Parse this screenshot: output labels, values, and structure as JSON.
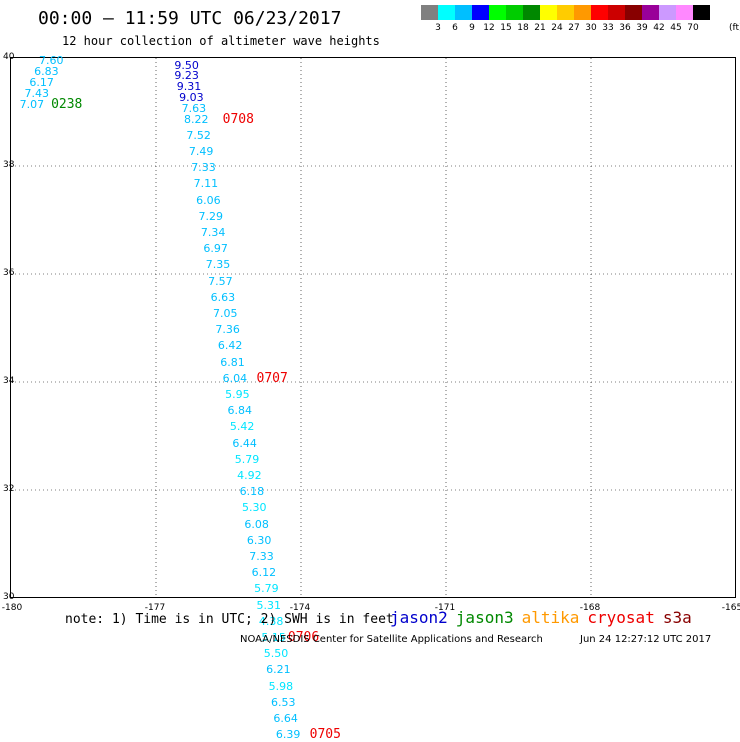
{
  "header": {
    "title": "00:00 – 11:59 UTC 06/23/2017",
    "subtitle": "12 hour collection of altimeter wave heights"
  },
  "colorbar": {
    "colors": [
      "#808080",
      "#00ffff",
      "#00bfff",
      "#0000ff",
      "#00ff00",
      "#00cc00",
      "#008800",
      "#ffff00",
      "#ffcc00",
      "#ff9900",
      "#ff0000",
      "#cc0000",
      "#880000",
      "#990099",
      "#cc99ff",
      "#ff88ff",
      "#000000"
    ],
    "labels": [
      "3",
      "6",
      "9",
      "12",
      "15",
      "18",
      "21",
      "24",
      "27",
      "30",
      "33",
      "36",
      "39",
      "42",
      "45",
      "70"
    ],
    "unit": "(ft)"
  },
  "map": {
    "lon_range": [
      -180,
      -165
    ],
    "lat_range": [
      30,
      40
    ],
    "x_ticks": [
      "-180",
      "-177",
      "-174",
      "-171",
      "-168",
      "-165"
    ],
    "x_tick_values": [
      -180,
      -177,
      -174,
      -171,
      -168,
      -165
    ],
    "y_ticks": [
      "40",
      "38",
      "36",
      "34",
      "32",
      "30"
    ],
    "y_tick_values": [
      40,
      38,
      36,
      34,
      32,
      30
    ],
    "observations": [
      {
        "lon": -179.4,
        "lat": 39.92,
        "v": "7.60",
        "c": "#00bfff"
      },
      {
        "lon": -179.5,
        "lat": 39.72,
        "v": "6.83",
        "c": "#00bfff"
      },
      {
        "lon": -179.6,
        "lat": 39.52,
        "v": "6.17",
        "c": "#00bfff"
      },
      {
        "lon": -179.7,
        "lat": 39.32,
        "v": "7.43",
        "c": "#00bfff"
      },
      {
        "lon": -179.8,
        "lat": 39.12,
        "v": "7.07",
        "c": "#00bfff"
      },
      {
        "lon": -176.6,
        "lat": 39.84,
        "v": "9.50",
        "c": "#0000cc"
      },
      {
        "lon": -176.6,
        "lat": 39.64,
        "v": "9.23",
        "c": "#0000cc"
      },
      {
        "lon": -176.55,
        "lat": 39.44,
        "v": "9.31",
        "c": "#0000cc"
      },
      {
        "lon": -176.5,
        "lat": 39.24,
        "v": "9.03",
        "c": "#0000cc"
      },
      {
        "lon": -176.45,
        "lat": 39.04,
        "v": "7.63",
        "c": "#00bfff"
      },
      {
        "lon": -176.4,
        "lat": 38.84,
        "v": "8.22",
        "c": "#00bfff"
      },
      {
        "lon": -176.35,
        "lat": 38.54,
        "v": "7.52",
        "c": "#00bfff"
      },
      {
        "lon": -176.3,
        "lat": 38.24,
        "v": "7.49",
        "c": "#00bfff"
      },
      {
        "lon": -176.25,
        "lat": 37.94,
        "v": "7.33",
        "c": "#00bfff"
      },
      {
        "lon": -176.2,
        "lat": 37.64,
        "v": "7.11",
        "c": "#00bfff"
      },
      {
        "lon": -176.15,
        "lat": 37.34,
        "v": "6.06",
        "c": "#00bfff"
      },
      {
        "lon": -176.1,
        "lat": 37.04,
        "v": "7.29",
        "c": "#00bfff"
      },
      {
        "lon": -176.05,
        "lat": 36.74,
        "v": "7.34",
        "c": "#00bfff"
      },
      {
        "lon": -176.0,
        "lat": 36.44,
        "v": "6.97",
        "c": "#00bfff"
      },
      {
        "lon": -175.95,
        "lat": 36.14,
        "v": "7.35",
        "c": "#00bfff"
      },
      {
        "lon": -175.9,
        "lat": 35.84,
        "v": "7.57",
        "c": "#00bfff"
      },
      {
        "lon": -175.85,
        "lat": 35.54,
        "v": "6.63",
        "c": "#00bfff"
      },
      {
        "lon": -175.8,
        "lat": 35.24,
        "v": "7.05",
        "c": "#00bfff"
      },
      {
        "lon": -175.75,
        "lat": 34.94,
        "v": "7.36",
        "c": "#00bfff"
      },
      {
        "lon": -175.7,
        "lat": 34.64,
        "v": "6.42",
        "c": "#00bfff"
      },
      {
        "lon": -175.65,
        "lat": 34.34,
        "v": "6.81",
        "c": "#00bfff"
      },
      {
        "lon": -175.6,
        "lat": 34.04,
        "v": "6.04",
        "c": "#00bfff"
      },
      {
        "lon": -175.55,
        "lat": 33.74,
        "v": "5.95",
        "c": "#00e5ff"
      },
      {
        "lon": -175.5,
        "lat": 33.44,
        "v": "6.84",
        "c": "#00bfff"
      },
      {
        "lon": -175.45,
        "lat": 33.14,
        "v": "5.42",
        "c": "#00e5ff"
      },
      {
        "lon": -175.4,
        "lat": 32.84,
        "v": "6.44",
        "c": "#00bfff"
      },
      {
        "lon": -175.35,
        "lat": 32.54,
        "v": "5.79",
        "c": "#00e5ff"
      },
      {
        "lon": -175.3,
        "lat": 32.24,
        "v": "4.92",
        "c": "#00e5ff"
      },
      {
        "lon": -175.25,
        "lat": 31.94,
        "v": "6.18",
        "c": "#00bfff"
      },
      {
        "lon": -175.2,
        "lat": 31.64,
        "v": "5.30",
        "c": "#00e5ff"
      },
      {
        "lon": -175.15,
        "lat": 31.34,
        "v": "6.08",
        "c": "#00bfff"
      },
      {
        "lon": -175.1,
        "lat": 31.04,
        "v": "6.30",
        "c": "#00bfff"
      },
      {
        "lon": -175.05,
        "lat": 30.74,
        "v": "7.33",
        "c": "#00bfff"
      },
      {
        "lon": -175.0,
        "lat": 30.44,
        "v": "6.12",
        "c": "#00bfff"
      },
      {
        "lon": -174.95,
        "lat": 30.14,
        "v": "5.79",
        "c": "#00e5ff"
      },
      {
        "lon": -174.9,
        "lat": 29.84,
        "v": "5.31",
        "c": "#00e5ff"
      },
      {
        "lon": -174.85,
        "lat": 29.54,
        "v": "4.38",
        "c": "#00e5ff"
      },
      {
        "lon": -174.8,
        "lat": 29.24,
        "v": "5.15",
        "c": "#00e5ff"
      },
      {
        "lon": -174.75,
        "lat": 28.94,
        "v": "5.50",
        "c": "#00e5ff"
      },
      {
        "lon": -174.7,
        "lat": 28.64,
        "v": "6.21",
        "c": "#00bfff"
      },
      {
        "lon": -174.65,
        "lat": 28.34,
        "v": "5.98",
        "c": "#00e5ff"
      },
      {
        "lon": -174.6,
        "lat": 28.04,
        "v": "6.53",
        "c": "#00bfff"
      },
      {
        "lon": -174.55,
        "lat": 27.74,
        "v": "6.64",
        "c": "#00bfff"
      },
      {
        "lon": -174.5,
        "lat": 27.44,
        "v": "6.39",
        "c": "#00bfff"
      }
    ],
    "passes": [
      {
        "lon": -179.15,
        "lat": 39.12,
        "label": "0238",
        "c": "#008800"
      },
      {
        "lon": -175.6,
        "lat": 38.84,
        "label": "0708",
        "c": "#ee0000"
      },
      {
        "lon": -174.9,
        "lat": 34.04,
        "label": "0707",
        "c": "#ee0000"
      },
      {
        "lon": -174.25,
        "lat": 29.24,
        "label": "0706",
        "c": "#ee0000"
      },
      {
        "lon": -173.8,
        "lat": 27.44,
        "label": "0705",
        "c": "#ee0000"
      }
    ]
  },
  "footer": {
    "note": "note: 1) Time is in UTC; 2) SWH is in feet",
    "legend": [
      {
        "name": "jason2",
        "color": "#0000cc"
      },
      {
        "name": "jason3",
        "color": "#008800"
      },
      {
        "name": "altika",
        "color": "#ff9900"
      },
      {
        "name": "cryosat",
        "color": "#ee0000"
      },
      {
        "name": "s3a",
        "color": "#880000"
      }
    ],
    "credit": "NOAA/NESDIS Center for Satellite Applications and Research",
    "timestamp": "Jun 24 12:27:12 UTC 2017"
  }
}
